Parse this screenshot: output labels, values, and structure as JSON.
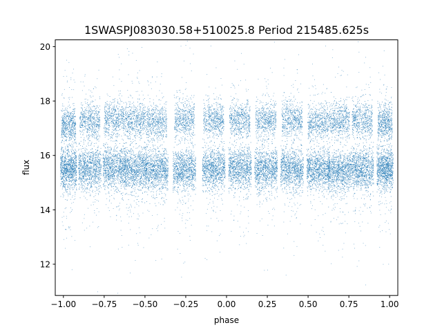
{
  "chart_data": {
    "type": "scatter",
    "title": "1SWASPJ083030.58+510025.8 Period 215485.625s",
    "xlabel": "phase",
    "ylabel": "flux",
    "xlim": [
      -1.05,
      1.05
    ],
    "ylim": [
      10.85,
      20.25
    ],
    "xticks": [
      -1.0,
      -0.75,
      -0.5,
      -0.25,
      0.0,
      0.25,
      0.5,
      0.75,
      1.0
    ],
    "xtick_labels": [
      "−1.00",
      "−0.75",
      "−0.50",
      "−0.25",
      "0.00",
      "0.25",
      "0.50",
      "0.75",
      "1.00"
    ],
    "yticks": [
      12,
      14,
      16,
      18,
      20
    ],
    "ytick_labels": [
      "12",
      "14",
      "16",
      "18",
      "20"
    ],
    "grid": false,
    "marker_color": "#1f77b4",
    "clusters": [
      {
        "x": -0.97,
        "halfwidth": 0.05,
        "low_flux": 15.55,
        "high_flux": 17.1
      },
      {
        "x": -0.84,
        "halfwidth": 0.07,
        "low_flux": 15.55,
        "high_flux": 17.25
      },
      {
        "x": -0.69,
        "halfwidth": 0.07,
        "low_flux": 15.55,
        "high_flux": 17.3
      },
      {
        "x": -0.56,
        "halfwidth": 0.07,
        "low_flux": 15.5,
        "high_flux": 17.3
      },
      {
        "x": -0.43,
        "halfwidth": 0.07,
        "low_flux": 15.5,
        "high_flux": 17.2
      },
      {
        "x": -0.26,
        "halfwidth": 0.07,
        "low_flux": 15.5,
        "high_flux": 17.3
      },
      {
        "x": -0.08,
        "halfwidth": 0.07,
        "low_flux": 15.55,
        "high_flux": 17.3
      },
      {
        "x": 0.08,
        "halfwidth": 0.07,
        "low_flux": 15.55,
        "high_flux": 17.3
      },
      {
        "x": 0.24,
        "halfwidth": 0.07,
        "low_flux": 15.5,
        "high_flux": 17.3
      },
      {
        "x": 0.4,
        "halfwidth": 0.07,
        "low_flux": 15.5,
        "high_flux": 17.3
      },
      {
        "x": 0.56,
        "halfwidth": 0.07,
        "low_flux": 15.5,
        "high_flux": 17.2
      },
      {
        "x": 0.69,
        "halfwidth": 0.07,
        "low_flux": 15.45,
        "high_flux": 17.3
      },
      {
        "x": 0.83,
        "halfwidth": 0.07,
        "low_flux": 15.5,
        "high_flux": 17.3
      },
      {
        "x": 0.97,
        "halfwidth": 0.05,
        "low_flux": 15.5,
        "high_flux": 17.2
      }
    ]
  }
}
